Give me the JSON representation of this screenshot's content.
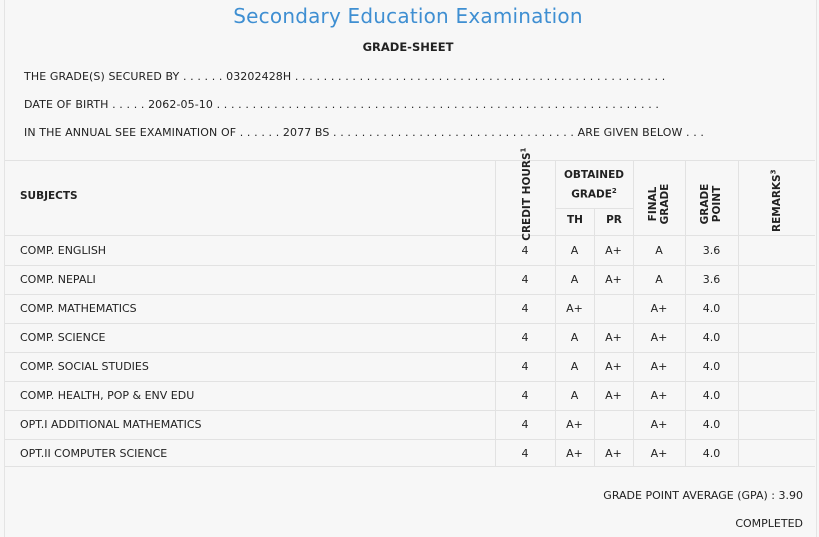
{
  "header": {
    "title": "Secondary Education Examination",
    "subtitle": "GRADE-SHEET"
  },
  "info": {
    "line1": "THE GRADE(S) SECURED BY . . . . . . 03202428H . . . . . . . . . . . . . . . . . . . . . . . . . . . . . . . . . . . . . . . . . . . . . . . . . . . .",
    "line2": "DATE OF BIRTH . . . . . 2062-05-10 . . . . . . . . . . . . . . . . . . . . . . . . . . . . . . . . . . . . . . . . . . . . . . . . . . . . . . . . . . . . . .",
    "line3": "IN THE ANNUAL SEE EXAMINATION OF . . . . . . 2077 BS . . . . . . . . . . . . . . . . . . . . . . . . . . . . . . . . . . ARE GIVEN BELOW . . ."
  },
  "table": {
    "col_subjects": "SUBJECTS",
    "col_credit": "CREDIT HOURS",
    "col_credit_sup": "1",
    "col_obtained": "OBTAINED GRADE",
    "col_obtained_sup": "2",
    "col_th": "TH",
    "col_pr": "PR",
    "col_final": "FINAL GRADE",
    "col_point": "GRADE POINT",
    "col_remarks": "REMARKS",
    "col_remarks_sup": "3",
    "rows": [
      {
        "subject": "COMP. ENGLISH",
        "credit": "4",
        "th": "A",
        "pr": "A+",
        "final": "A",
        "point": "3.6",
        "remarks": ""
      },
      {
        "subject": "COMP. NEPALI",
        "credit": "4",
        "th": "A",
        "pr": "A+",
        "final": "A",
        "point": "3.6",
        "remarks": ""
      },
      {
        "subject": "COMP. MATHEMATICS",
        "credit": "4",
        "th": "A+",
        "pr": "",
        "final": "A+",
        "point": "4.0",
        "remarks": ""
      },
      {
        "subject": "COMP. SCIENCE",
        "credit": "4",
        "th": "A",
        "pr": "A+",
        "final": "A+",
        "point": "4.0",
        "remarks": ""
      },
      {
        "subject": "COMP. SOCIAL STUDIES",
        "credit": "4",
        "th": "A",
        "pr": "A+",
        "final": "A+",
        "point": "4.0",
        "remarks": ""
      },
      {
        "subject": "COMP. HEALTH, POP & ENV EDU",
        "credit": "4",
        "th": "A",
        "pr": "A+",
        "final": "A+",
        "point": "4.0",
        "remarks": ""
      },
      {
        "subject": "OPT.I ADDITIONAL MATHEMATICS",
        "credit": "4",
        "th": "A+",
        "pr": "",
        "final": "A+",
        "point": "4.0",
        "remarks": ""
      },
      {
        "subject": "OPT.II COMPUTER SCIENCE",
        "credit": "4",
        "th": "A+",
        "pr": "A+",
        "final": "A+",
        "point": "4.0",
        "remarks": ""
      }
    ]
  },
  "footer": {
    "gpa": "GRADE POINT AVERAGE (GPA) : 3.90",
    "status": "COMPLETED"
  },
  "colors": {
    "title": "#3f8fd2",
    "background": "#f7f7f7",
    "grid": "#e2e2e2"
  }
}
